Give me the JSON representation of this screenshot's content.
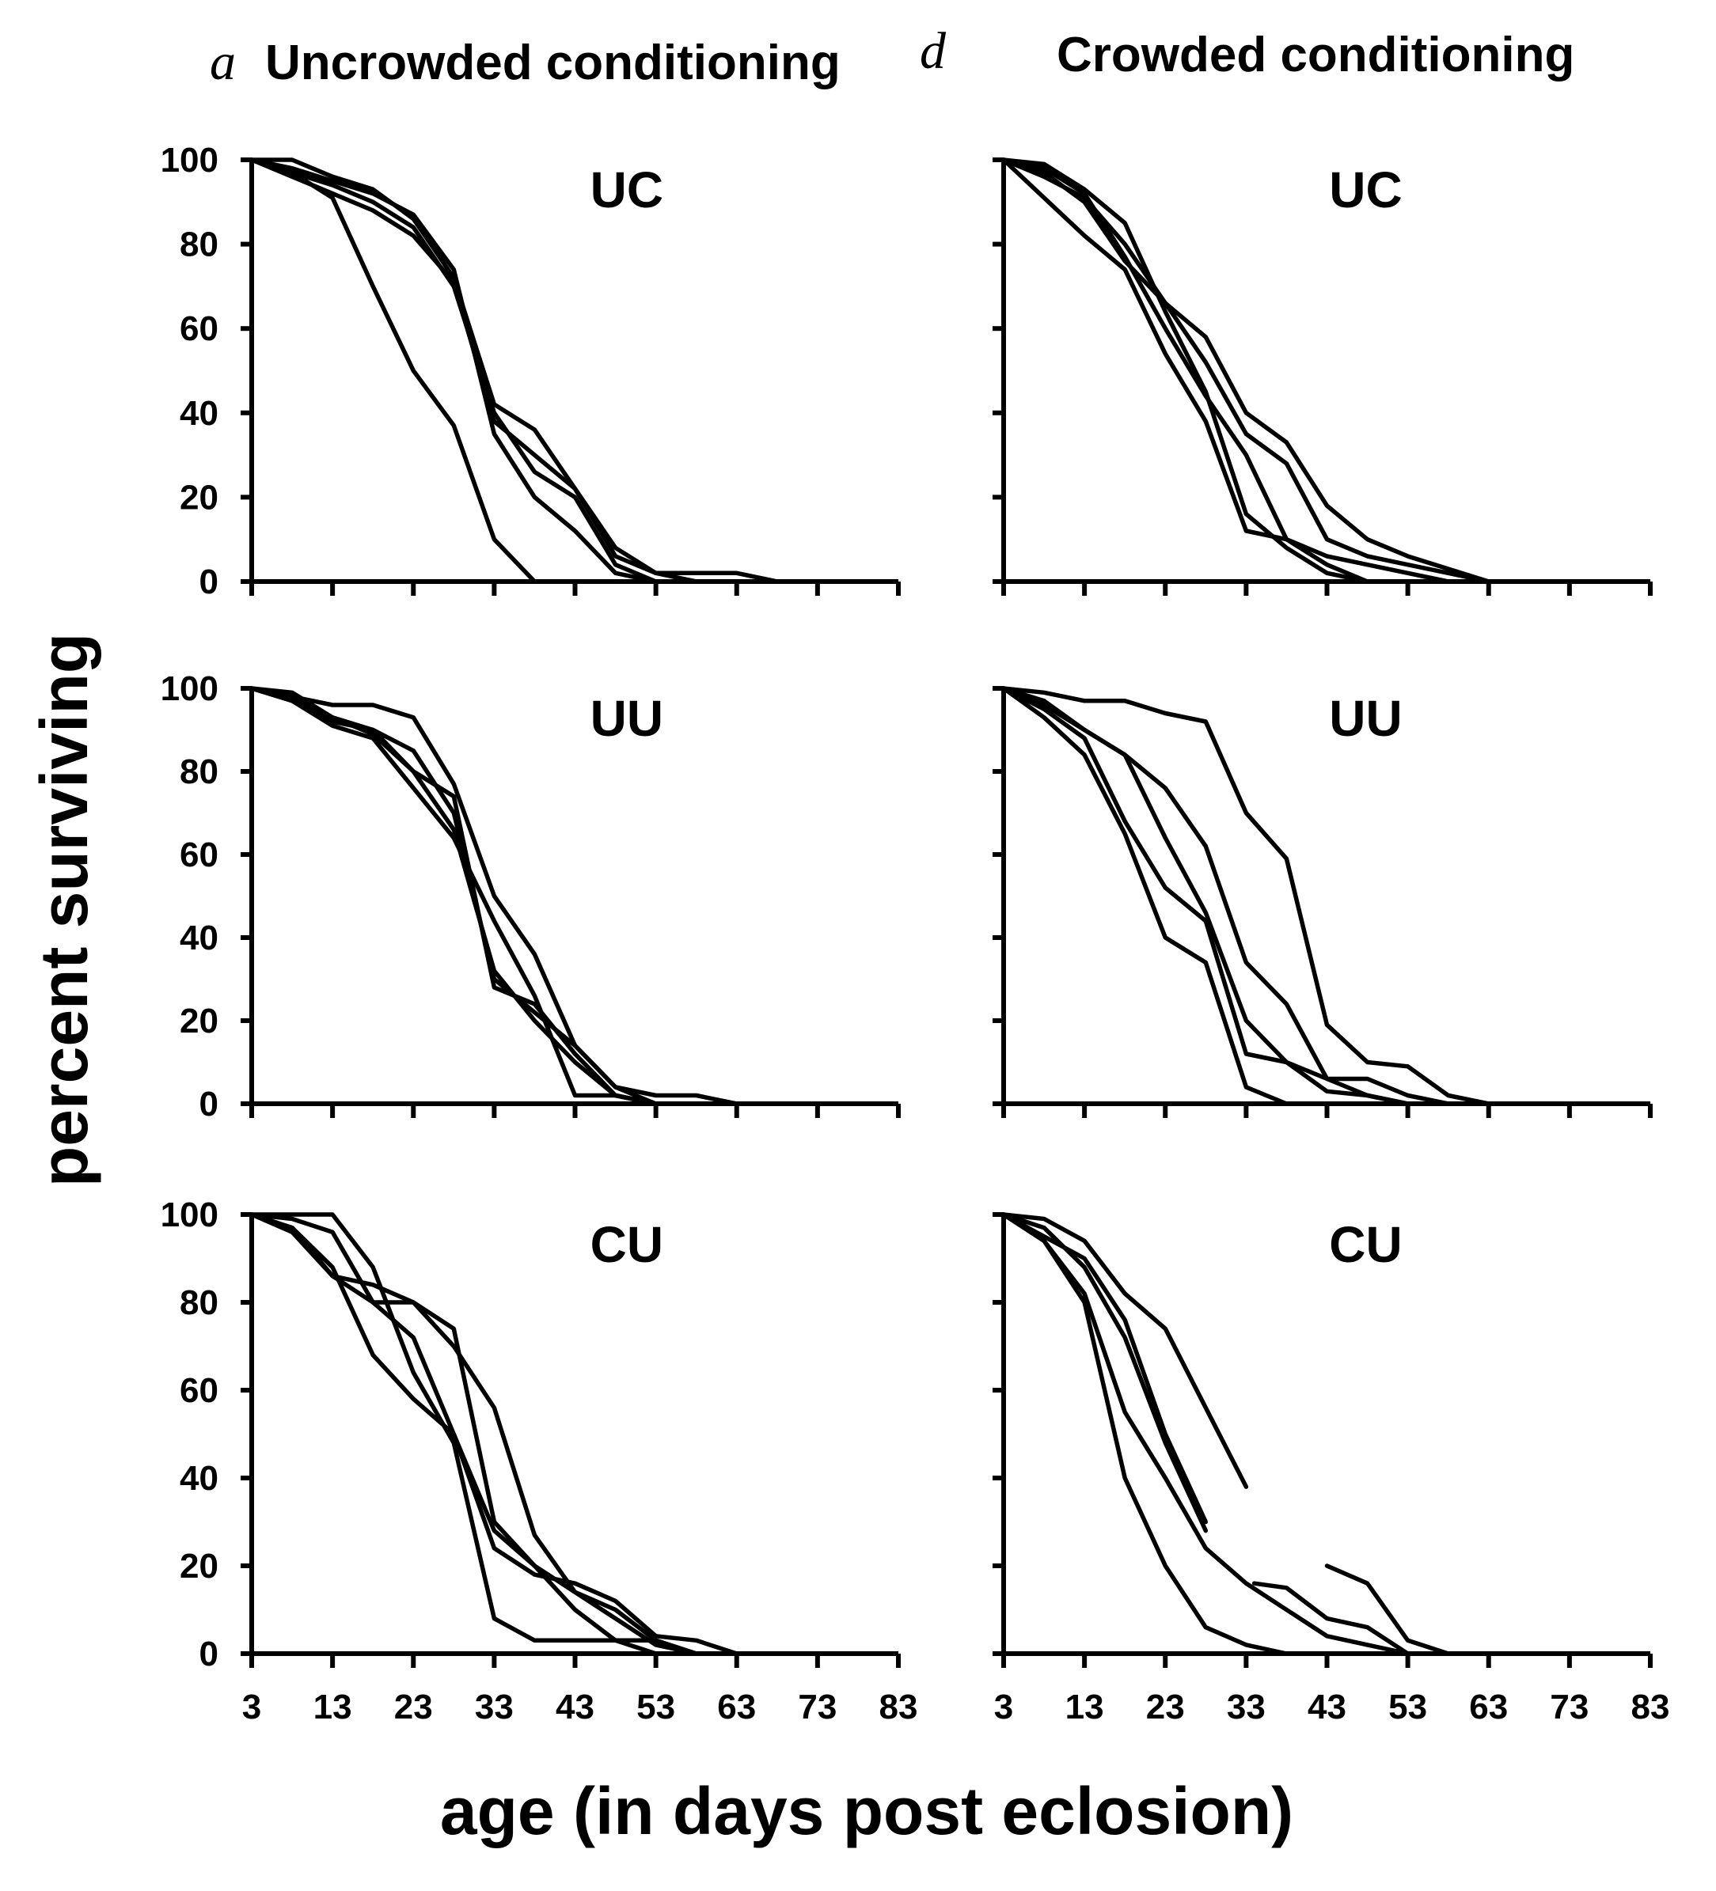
{
  "figure": {
    "xlabel": "age (in days post eclosion)",
    "ylabel": "percent surviving",
    "col_titles": [
      {
        "letter": "a",
        "text": "Uncrowded conditioning"
      },
      {
        "letter": "d",
        "text": "Crowded conditioning"
      }
    ]
  },
  "chart_data": [
    {
      "type": "line",
      "panel": "UC",
      "column": "Uncrowded conditioning",
      "x_ticks": [
        "3",
        "13",
        "23",
        "33",
        "43",
        "53",
        "63",
        "73",
        "83"
      ],
      "y_ticks": [
        "0",
        "20",
        "40",
        "60",
        "80",
        "100"
      ],
      "xlim": [
        3,
        83
      ],
      "ylim": [
        0,
        100
      ],
      "grid": false,
      "series": [
        {
          "x": [
            3,
            8,
            13,
            18,
            23,
            28,
            33,
            38,
            43,
            48,
            53,
            58,
            63,
            68
          ],
          "y": [
            100,
            97,
            91,
            70,
            50,
            37,
            10,
            0,
            0,
            0,
            0,
            0,
            0,
            0
          ]
        },
        {
          "x": [
            3,
            8,
            13,
            18,
            23,
            28,
            33,
            38,
            43,
            48,
            53,
            58,
            63,
            68
          ],
          "y": [
            100,
            100,
            96,
            93,
            86,
            72,
            42,
            36,
            22,
            6,
            2,
            2,
            2,
            0
          ]
        },
        {
          "x": [
            3,
            8,
            13,
            18,
            23,
            28,
            33,
            38,
            43,
            48,
            53,
            58,
            63,
            68
          ],
          "y": [
            100,
            97,
            94,
            90,
            84,
            70,
            40,
            26,
            20,
            4,
            0,
            0,
            0,
            0
          ]
        },
        {
          "x": [
            3,
            8,
            13,
            18,
            23,
            28,
            33,
            38,
            43,
            48,
            53,
            58,
            63,
            68
          ],
          "y": [
            100,
            98,
            95,
            92,
            87,
            74,
            35,
            20,
            12,
            2,
            0,
            0,
            0,
            0
          ]
        },
        {
          "x": [
            3,
            8,
            13,
            18,
            23,
            28,
            33,
            38,
            43,
            48,
            53,
            58,
            63,
            68
          ],
          "y": [
            100,
            96,
            92,
            88,
            82,
            71,
            38,
            30,
            22,
            8,
            2,
            0,
            0,
            0
          ]
        }
      ]
    },
    {
      "type": "line",
      "panel": "UC",
      "column": "Crowded conditioning",
      "x_ticks": [
        "3",
        "13",
        "23",
        "33",
        "43",
        "53",
        "63",
        "73",
        "83"
      ],
      "y_ticks": [
        "0",
        "20",
        "40",
        "60",
        "80",
        "100"
      ],
      "xlim": [
        3,
        83
      ],
      "ylim": [
        0,
        100
      ],
      "grid": false,
      "series": [
        {
          "x": [
            3,
            8,
            13,
            18,
            23,
            28,
            33,
            38,
            43,
            48,
            53,
            58,
            63
          ],
          "y": [
            100,
            91,
            82,
            74,
            54,
            38,
            12,
            10,
            4,
            0,
            0,
            0,
            0
          ]
        },
        {
          "x": [
            3,
            8,
            13,
            18,
            23,
            28,
            33,
            38,
            43,
            48,
            53,
            58,
            63
          ],
          "y": [
            100,
            99,
            93,
            85,
            64,
            45,
            16,
            8,
            2,
            0,
            0,
            0,
            0
          ]
        },
        {
          "x": [
            3,
            8,
            13,
            18,
            23,
            28,
            33,
            38,
            43,
            48,
            53,
            58,
            63
          ],
          "y": [
            100,
            96,
            91,
            80,
            66,
            52,
            35,
            28,
            10,
            6,
            4,
            2,
            0
          ]
        },
        {
          "x": [
            3,
            8,
            13,
            18,
            23,
            28,
            33,
            38,
            43,
            48,
            53,
            58,
            63
          ],
          "y": [
            100,
            97,
            90,
            76,
            66,
            58,
            40,
            33,
            18,
            10,
            6,
            3,
            0
          ]
        },
        {
          "x": [
            3,
            8,
            13,
            18,
            23,
            28,
            33,
            38,
            43,
            48,
            53,
            58,
            63
          ],
          "y": [
            100,
            98,
            92,
            77,
            60,
            44,
            30,
            10,
            6,
            4,
            2,
            0,
            0
          ]
        }
      ]
    },
    {
      "type": "line",
      "panel": "UU",
      "column": "Uncrowded conditioning",
      "x_ticks": [
        "3",
        "13",
        "23",
        "33",
        "43",
        "53",
        "63",
        "73",
        "83"
      ],
      "y_ticks": [
        "0",
        "20",
        "40",
        "60",
        "80",
        "100"
      ],
      "xlim": [
        3,
        83
      ],
      "ylim": [
        0,
        100
      ],
      "grid": false,
      "series": [
        {
          "x": [
            3,
            8,
            13,
            18,
            23,
            28,
            33,
            38,
            43,
            48,
            53,
            58,
            63
          ],
          "y": [
            100,
            98,
            96,
            96,
            93,
            77,
            50,
            36,
            14,
            4,
            2,
            2,
            0
          ]
        },
        {
          "x": [
            3,
            8,
            13,
            18,
            23,
            28,
            33,
            38,
            43,
            48,
            53,
            58,
            63
          ],
          "y": [
            100,
            99,
            93,
            89,
            80,
            74,
            28,
            24,
            12,
            2,
            0,
            0,
            0
          ]
        },
        {
          "x": [
            3,
            8,
            13,
            18,
            23,
            28,
            33,
            38,
            43,
            48,
            53,
            58,
            63
          ],
          "y": [
            100,
            97,
            93,
            90,
            80,
            66,
            32,
            20,
            10,
            2,
            0,
            0,
            0
          ]
        },
        {
          "x": [
            3,
            8,
            13,
            18,
            23,
            28,
            33,
            38,
            43,
            48,
            53,
            58,
            63
          ],
          "y": [
            100,
            98,
            92,
            90,
            85,
            70,
            30,
            22,
            14,
            4,
            0,
            0,
            0
          ]
        },
        {
          "x": [
            3,
            8,
            13,
            18,
            23,
            28,
            33,
            38,
            43,
            48,
            53,
            58,
            63
          ],
          "y": [
            100,
            97,
            91,
            88,
            76,
            64,
            44,
            26,
            2,
            2,
            0,
            0,
            0
          ]
        }
      ]
    },
    {
      "type": "line",
      "panel": "UU",
      "column": "Crowded conditioning",
      "x_ticks": [
        "3",
        "13",
        "23",
        "33",
        "43",
        "53",
        "63",
        "73",
        "83"
      ],
      "y_ticks": [
        "0",
        "20",
        "40",
        "60",
        "80",
        "100"
      ],
      "xlim": [
        3,
        83
      ],
      "ylim": [
        0,
        100
      ],
      "grid": false,
      "series": [
        {
          "x": [
            3,
            8,
            13,
            18,
            23,
            28,
            33,
            38,
            43,
            48,
            53,
            58,
            63
          ],
          "y": [
            100,
            99,
            97,
            97,
            94,
            92,
            70,
            59,
            19,
            10,
            9,
            2,
            0
          ]
        },
        {
          "x": [
            3,
            8,
            13,
            18,
            23,
            28,
            33,
            38,
            43,
            48,
            53,
            58,
            63
          ],
          "y": [
            100,
            97,
            90,
            84,
            76,
            62,
            34,
            24,
            6,
            6,
            2,
            0,
            0
          ]
        },
        {
          "x": [
            3,
            8,
            13,
            18,
            23,
            28,
            33,
            38,
            43,
            48,
            53,
            58,
            63
          ],
          "y": [
            100,
            95,
            88,
            68,
            52,
            44,
            12,
            10,
            6,
            2,
            0,
            0,
            0
          ]
        },
        {
          "x": [
            3,
            8,
            13,
            18,
            23,
            28,
            33,
            38,
            43,
            48,
            53,
            58,
            63
          ],
          "y": [
            100,
            93,
            84,
            65,
            40,
            34,
            4,
            0,
            0,
            0,
            0,
            0,
            0
          ]
        },
        {
          "x": [
            3,
            8,
            13,
            18,
            23,
            28,
            33,
            38,
            43,
            48,
            53,
            58,
            63
          ],
          "y": [
            100,
            96,
            90,
            84,
            64,
            46,
            20,
            10,
            3,
            2,
            0,
            0,
            0
          ]
        }
      ]
    },
    {
      "type": "line",
      "panel": "CU",
      "column": "Uncrowded conditioning",
      "x_ticks": [
        "3",
        "13",
        "23",
        "33",
        "43",
        "53",
        "63",
        "73",
        "83"
      ],
      "y_ticks": [
        "0",
        "20",
        "40",
        "60",
        "80",
        "100"
      ],
      "xlim": [
        3,
        83
      ],
      "ylim": [
        0,
        100
      ],
      "grid": false,
      "series": [
        {
          "x": [
            3,
            8,
            13,
            18,
            23,
            28,
            33,
            38,
            43,
            48,
            53,
            58,
            63
          ],
          "y": [
            100,
            100,
            100,
            88,
            64,
            48,
            8,
            3,
            3,
            3,
            3,
            0,
            0
          ]
        },
        {
          "x": [
            3,
            8,
            13,
            18,
            23,
            28,
            33,
            38,
            43,
            48,
            53,
            58,
            63
          ],
          "y": [
            100,
            97,
            86,
            80,
            80,
            70,
            56,
            27,
            14,
            10,
            3,
            0,
            0
          ]
        },
        {
          "x": [
            3,
            8,
            13,
            18,
            23,
            28,
            33,
            38,
            43,
            48,
            53,
            58,
            63
          ],
          "y": [
            100,
            97,
            88,
            68,
            58,
            50,
            24,
            18,
            16,
            12,
            4,
            3,
            0
          ]
        },
        {
          "x": [
            3,
            8,
            13,
            18,
            23,
            28,
            33,
            38,
            43,
            48,
            53,
            58,
            63
          ],
          "y": [
            100,
            96,
            86,
            84,
            80,
            74,
            30,
            20,
            10,
            3,
            0,
            0,
            0
          ]
        },
        {
          "x": [
            3,
            8,
            13,
            18,
            23,
            28,
            33,
            38,
            43,
            48,
            53,
            58,
            63
          ],
          "y": [
            100,
            99,
            96,
            80,
            72,
            50,
            28,
            20,
            14,
            8,
            2,
            0,
            0
          ]
        }
      ]
    },
    {
      "type": "line",
      "panel": "CU",
      "column": "Crowded conditioning",
      "x_ticks": [
        "3",
        "13",
        "23",
        "33",
        "43",
        "53",
        "63",
        "73",
        "83"
      ],
      "y_ticks": [
        "0",
        "20",
        "40",
        "60",
        "80",
        "100"
      ],
      "xlim": [
        3,
        83
      ],
      "ylim": [
        0,
        100
      ],
      "grid": false,
      "series": [
        {
          "x": [
            3,
            8,
            13,
            18,
            23,
            28,
            33,
            38,
            43
          ],
          "y": [
            100,
            94,
            80,
            40,
            20,
            6,
            2,
            0,
            0
          ]
        },
        {
          "x": [
            3,
            8,
            13,
            18,
            23,
            28,
            33,
            38,
            43,
            48,
            53,
            58
          ],
          "y": [
            100,
            94,
            82,
            55,
            40,
            24,
            16,
            10,
            4,
            2,
            0,
            0
          ]
        },
        {
          "x": [
            3,
            8,
            13,
            18,
            23,
            28
          ],
          "y": [
            100,
            97,
            88,
            72,
            48,
            28
          ]
        },
        {
          "x": [
            3,
            8,
            13,
            18,
            23,
            28,
            33
          ],
          "y": [
            100,
            99,
            94,
            82,
            74,
            56,
            38
          ]
        },
        {
          "x": [
            3,
            8,
            13,
            18,
            23,
            28
          ],
          "y": [
            100,
            95,
            90,
            76,
            50,
            30
          ]
        },
        {
          "x": [
            34,
            38,
            43,
            48,
            53,
            58
          ],
          "y": [
            16,
            15,
            8,
            6,
            0,
            0
          ]
        },
        {
          "x": [
            43,
            48,
            53,
            58
          ],
          "y": [
            20,
            16,
            3,
            0
          ]
        }
      ]
    }
  ]
}
